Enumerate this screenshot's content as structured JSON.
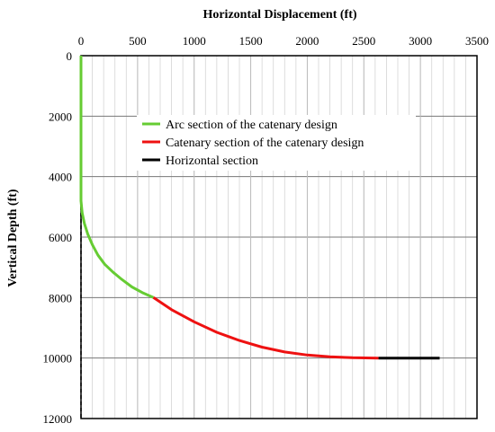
{
  "chart_data": {
    "type": "line",
    "title": "",
    "xlabel": "Horizontal Displacement (ft)",
    "ylabel": "Vertical Depth (ft)",
    "xlim": [
      0,
      3500
    ],
    "ylim": [
      0,
      12000
    ],
    "y_inverted": true,
    "x_axis_position": "top",
    "x_ticks": [
      0,
      500,
      1000,
      1500,
      2000,
      2500,
      3000,
      3500
    ],
    "y_ticks": [
      0,
      2000,
      4000,
      6000,
      8000,
      10000,
      12000
    ],
    "x_tick_labels": [
      "0",
      "500",
      "1000",
      "1500",
      "2000",
      "2500",
      "3000",
      "3500"
    ],
    "y_tick_labels": [
      "0",
      "2000",
      "4000",
      "6000",
      "8000",
      "10000",
      "12000"
    ],
    "grid": "major and minor",
    "legend_position": "upper-center",
    "series": [
      {
        "name": "Arc section of the catenary design",
        "color": "#66cc33",
        "x": [
          0,
          0,
          10,
          30,
          60,
          100,
          150,
          210,
          280,
          360,
          450,
          550,
          640
        ],
        "y": [
          0,
          4800,
          5200,
          5550,
          5900,
          6250,
          6600,
          6900,
          7150,
          7400,
          7650,
          7850,
          8000
        ]
      },
      {
        "name": "Catenary section of the catenary design",
        "color": "#ee1111",
        "x": [
          640,
          800,
          1000,
          1200,
          1400,
          1600,
          1800,
          2000,
          2200,
          2400,
          2630
        ],
        "y": [
          8000,
          8400,
          8800,
          9150,
          9420,
          9640,
          9800,
          9900,
          9960,
          9990,
          10000
        ]
      },
      {
        "name": "Horizontal section",
        "color": "#000000",
        "x": [
          2630,
          3170
        ],
        "y": [
          10000,
          10000
        ]
      }
    ]
  }
}
